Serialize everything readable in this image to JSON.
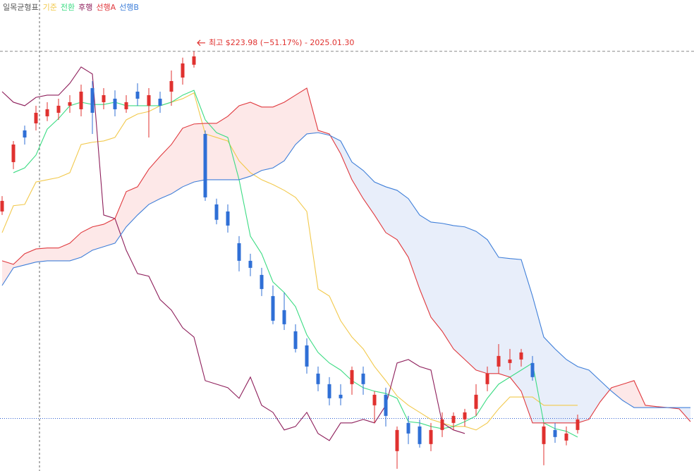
{
  "chart_data": {
    "type": "ichimoku",
    "title": "일목균형표",
    "annotation": "최고 $223.98 (−51.17%) - 2025.01.30",
    "high_line": 223.98,
    "last_price": 109.4,
    "ylim": [
      93,
      240
    ],
    "categories": [
      null,
      null,
      null,
      null,
      null,
      null,
      null,
      null,
      null,
      null,
      null,
      null,
      null,
      null,
      null,
      null,
      null,
      null,
      null,
      null,
      null,
      null,
      null,
      null,
      null,
      null,
      null,
      null,
      null,
      null,
      null,
      null,
      null,
      null,
      null,
      null,
      null,
      null,
      null,
      null,
      null,
      null,
      null,
      null,
      null,
      null,
      null,
      null,
      null,
      null,
      null,
      null,
      null,
      null,
      null,
      null,
      null,
      null,
      null,
      null,
      null,
      null
    ],
    "candles": {
      "up_color": "#e0312f",
      "down_color": "#2f6fd6",
      "open": [
        174,
        189.4,
        199.3,
        201.5,
        203.7,
        204.8,
        207,
        205.9,
        212.5,
        208.1,
        209.2,
        205.9,
        211.4,
        207,
        209.2,
        211.4,
        215.8,
        219.8,
        198.2,
        176.2,
        174,
        164.1,
        158.6,
        154.2,
        147.6,
        143.2,
        136.6,
        132.2,
        123.4,
        120.1,
        116.8,
        120.1,
        123.4,
        113.5,
        116.8,
        99.2,
        108,
        106.9,
        101.4,
        105.8,
        108,
        109.1,
        112.4,
        120.1,
        125.6,
        126.7,
        127.8,
        126.7,
        101.4,
        105.8,
        102.5,
        105.8,
        null,
        null,
        null,
        null,
        null,
        null,
        null,
        null,
        null,
        null
      ],
      "high": [
        178.8,
        196,
        200.8,
        207,
        208.1,
        209.2,
        210.3,
        213.6,
        214.7,
        212.5,
        211.8,
        210.3,
        214.0,
        212.5,
        211.4,
        218,
        222.0,
        223.98,
        199.3,
        178.0,
        176.2,
        166.3,
        160.8,
        156.4,
        150.9,
        148.7,
        138.8,
        134.4,
        125.6,
        122.3,
        120.1,
        125.6,
        125.6,
        117.9,
        119,
        106.9,
        110.2,
        109.1,
        108,
        111.3,
        111.3,
        112.4,
        120.1,
        125.6,
        132.6,
        131.1,
        131.1,
        128.9,
        108,
        108,
        106.9,
        110.6,
        null,
        null,
        null,
        null,
        null,
        null,
        null,
        null,
        null,
        null
      ],
      "low": [
        172.9,
        187.2,
        194.9,
        199.3,
        202.2,
        202.6,
        204.8,
        203.7,
        198.2,
        205.9,
        203.7,
        204.8,
        207,
        197.1,
        204.8,
        207,
        213.6,
        218.9,
        177.3,
        170.0,
        167.4,
        155.3,
        153.8,
        147.6,
        138.8,
        137.0,
        130,
        123.4,
        117.9,
        113.5,
        113.5,
        116.8,
        116.8,
        108,
        106.9,
        93.7,
        101.4,
        100.3,
        99.2,
        103.6,
        105.8,
        106.9,
        110.2,
        117.9,
        123.4,
        124.5,
        125.6,
        121.2,
        94.8,
        101.8,
        101.0,
        104.7,
        null,
        null,
        null,
        null,
        null,
        null,
        null,
        null,
        null,
        null
      ],
      "close": [
        177.3,
        194.9,
        197.1,
        204.8,
        205.9,
        207,
        208.1,
        211.4,
        204.8,
        210.3,
        205.9,
        208.1,
        209.2,
        210.3,
        207,
        214.7,
        220.2,
        222.4,
        178.4,
        171.4,
        169.6,
        158.6,
        156.4,
        149.8,
        139.9,
        138.8,
        131.1,
        125.6,
        120.1,
        115.7,
        115.7,
        124.5,
        120.1,
        116.8,
        110.2,
        105.8,
        104.7,
        101.4,
        105.8,
        109.1,
        110.2,
        111.3,
        116.8,
        123.4,
        128.9,
        127.8,
        130,
        122.3,
        106.9,
        103.6,
        104.7,
        109.1,
        null,
        null,
        null,
        null,
        null,
        null,
        null,
        null,
        null,
        null
      ]
    },
    "series": [
      {
        "name": "기준",
        "color": "#f2c94c",
        "values": [
          167.4,
          175.8,
          176.2,
          183.2,
          183.9,
          184.6,
          186.1,
          194.9,
          195.6,
          196,
          197.1,
          202.6,
          204.4,
          205.2,
          207,
          208.1,
          209.2,
          211.0,
          198.2,
          197.1,
          196,
          189.8,
          186.1,
          183.9,
          182.4,
          180.6,
          178.4,
          174,
          149.8,
          147.6,
          139.9,
          134.8,
          131.1,
          125.6,
          121.2,
          116.4,
          113.5,
          111.3,
          109.1,
          108,
          106.9,
          106.9,
          105.8,
          108,
          112.4,
          116.1,
          116.1,
          116.1,
          113.5,
          113.5,
          113.5,
          113.5,
          null,
          null,
          null,
          null,
          null,
          null,
          null,
          null,
          null,
          null
        ]
      },
      {
        "name": "전환",
        "color": "#3ddc84",
        "values": [
          null,
          186.1,
          187.6,
          191.6,
          199.7,
          203.0,
          207,
          208.1,
          207.4,
          207.4,
          208.1,
          207,
          207,
          207,
          207,
          208.1,
          210.3,
          211.8,
          202.6,
          198.6,
          197.1,
          183.9,
          166.3,
          160.8,
          152,
          148.7,
          144.3,
          135.5,
          130,
          126.7,
          124.5,
          121.2,
          119,
          117.9,
          117.2,
          115.7,
          108.4,
          108,
          106.9,
          106.2,
          106.9,
          108.4,
          110.2,
          115.7,
          120.1,
          122.3,
          124.5,
          126.7,
          108,
          106.2,
          105.4,
          103.6,
          null,
          null,
          null,
          null,
          null,
          null,
          null,
          null,
          null,
          null
        ]
      },
      {
        "name": "후행",
        "color": "#8e1f5b",
        "values": [
          211.4,
          208.1,
          207,
          209.6,
          210.3,
          210.3,
          214.0,
          219.1,
          216.9,
          172.9,
          171.8,
          161.9,
          154.6,
          153.8,
          146.5,
          143.2,
          137.7,
          134.8,
          121.2,
          120.1,
          119,
          115.7,
          122.3,
          113.5,
          111.3,
          105.8,
          106.9,
          111.3,
          104.7,
          102.5,
          108,
          108,
          109.1,
          108,
          113.5,
          126.7,
          127.8,
          125.6,
          124.5,
          108,
          105.8,
          104.7,
          null,
          null,
          null,
          null,
          null,
          null,
          null,
          null,
          null,
          null,
          null,
          null,
          null,
          null,
          null,
          null,
          null,
          null,
          null,
          null
        ]
      },
      {
        "name": "선행A",
        "color": "#e0393e",
        "fill": "#fde8e8",
        "values": [
          158.6,
          157.5,
          160.8,
          162.3,
          162.6,
          162.6,
          164.1,
          167.4,
          169.2,
          170.0,
          171.8,
          180.2,
          181.7,
          187.2,
          191.2,
          194.9,
          200.0,
          201.3,
          201.5,
          201.5,
          203.7,
          207,
          208.1,
          206.6,
          206.6,
          208.1,
          210.3,
          212.5,
          199.3,
          198.2,
          192.0,
          183.9,
          178.0,
          172.9,
          167.4,
          165.2,
          159.7,
          149.8,
          141,
          136.6,
          131.1,
          127.8,
          124.5,
          123.4,
          123.4,
          122.3,
          117.9,
          108,
          108,
          108,
          108,
          108,
          109.1,
          114.6,
          119,
          120.1,
          121.2,
          113.5,
          113.1,
          112.8,
          112.4,
          108.4
        ]
      },
      {
        "name": "선행B",
        "color": "#3f7fd9",
        "fill": "#e8eefa",
        "values": [
          150.9,
          156.4,
          157.3,
          158.2,
          158.6,
          158.6,
          158.6,
          159.7,
          161.9,
          163,
          164.1,
          169.2,
          172.9,
          176.2,
          178.0,
          179.5,
          181.7,
          183.2,
          183.9,
          183.9,
          183.9,
          183.9,
          185,
          186.8,
          187.6,
          189.8,
          194.9,
          198.2,
          198.6,
          197.8,
          196,
          189.4,
          186.8,
          183.2,
          181.7,
          180.6,
          178.0,
          172.9,
          170.7,
          170.3,
          169.6,
          169.2,
          167.8,
          165.2,
          159.7,
          159.3,
          159.0,
          147.6,
          134.8,
          131.1,
          127.8,
          125.6,
          124.5,
          121.2,
          117.9,
          115.0,
          112.8,
          112.8,
          112.8,
          112.8,
          112.8,
          112.8
        ]
      }
    ]
  }
}
